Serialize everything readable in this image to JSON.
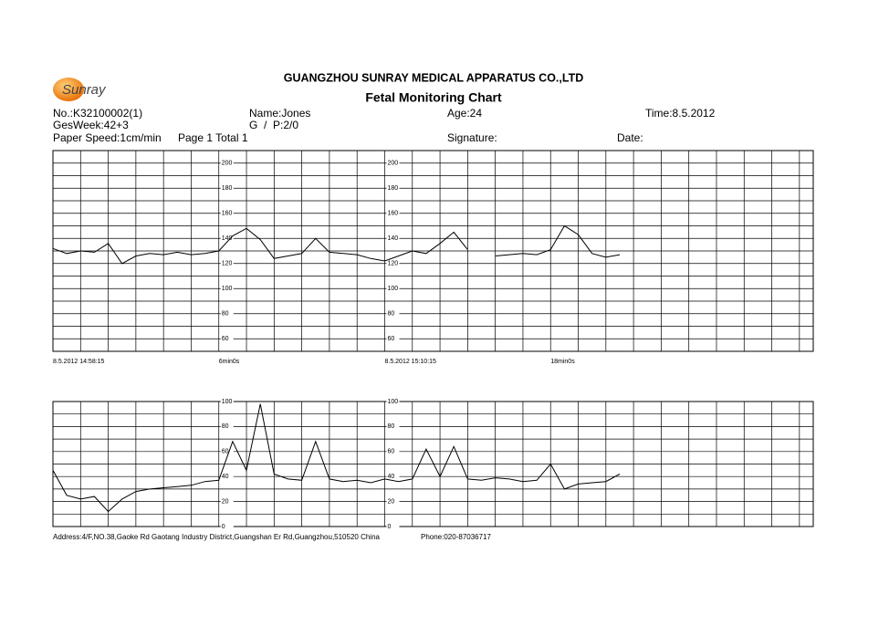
{
  "header": {
    "logo": "Sunray",
    "company": "GUANGZHOU SUNRAY MEDICAL APPARATUS CO.,LTD",
    "title": "Fetal Monitoring Chart"
  },
  "fields": {
    "no": "No.:K32100002(1)",
    "name": "Name:Jones",
    "age": "Age:24",
    "time": "Time:8.5.2012",
    "gesweek": "GesWeek:42+3",
    "gp": "G  /  P:2/0",
    "speed": "Paper Speed:1cm/min",
    "page": "Page 1 Total 1",
    "signature": "Signature:",
    "date": "Date:"
  },
  "footer": {
    "address": "Address:4/F,NO.38,Gaoke Rd Gaotang Industry District,Guangshan Er Rd,Guangzhou,510520 China",
    "phone": "Phone:020-87036717"
  },
  "chart_data": [
    {
      "type": "line",
      "color": "#000000",
      "grid": true,
      "x": [
        0,
        0.5,
        1,
        1.5,
        2,
        2.5,
        3,
        3.5,
        4,
        4.5,
        5,
        5.5,
        6,
        6.5,
        7,
        7.5,
        8,
        8.5,
        9,
        9.5,
        10,
        10.5,
        11,
        11.5,
        12,
        12.5,
        13,
        13.5,
        14,
        14.5,
        15,
        15.5,
        16,
        16.5,
        17,
        17.5,
        18,
        18.5,
        19,
        19.5,
        20,
        20.5
      ],
      "values": [
        132,
        128,
        130,
        129,
        136,
        120,
        126,
        128,
        127,
        129,
        127,
        128,
        130,
        142,
        148,
        139,
        124,
        126,
        128,
        140,
        129,
        128,
        127,
        124,
        122,
        126,
        130,
        128,
        136,
        145,
        131,
        null,
        126,
        127,
        128,
        127,
        131,
        150,
        143,
        128,
        125,
        127
      ],
      "xlim": [
        0,
        27.5
      ],
      "ylim": [
        50,
        210
      ],
      "xticks": [
        {
          "value": 0,
          "label": "8.5.2012 14:58:15"
        },
        {
          "value": 6,
          "label": "6min0s"
        },
        {
          "value": 12,
          "label": "8.5.2012 15:10:15"
        },
        {
          "value": 18,
          "label": "18min0s"
        }
      ],
      "yticks": [
        60,
        80,
        100,
        120,
        140,
        160,
        180,
        200
      ],
      "minor_xticks": [
        0,
        1,
        2,
        3,
        4,
        5,
        6,
        7,
        8,
        9,
        10,
        11,
        12,
        13,
        14,
        15,
        16,
        17,
        18,
        19,
        20,
        21,
        22,
        23,
        24,
        25,
        26,
        27
      ],
      "minor_yticks": [
        60,
        70,
        80,
        90,
        100,
        110,
        120,
        130,
        140,
        150,
        160,
        170,
        180,
        190,
        200
      ]
    },
    {
      "type": "line",
      "color": "#000000",
      "grid": true,
      "x": [
        0,
        0.5,
        1,
        1.5,
        2,
        2.5,
        3,
        3.5,
        4,
        4.5,
        5,
        5.5,
        6,
        6.5,
        7,
        7.5,
        8,
        8.5,
        9,
        9.5,
        10,
        10.5,
        11,
        11.5,
        12,
        12.5,
        13,
        13.5,
        14,
        14.5,
        15,
        15.5,
        16,
        16.5,
        17,
        17.5,
        18,
        18.5,
        19,
        19.5,
        20,
        20.5
      ],
      "values": [
        45,
        25,
        22,
        24,
        12,
        22,
        28,
        30,
        31,
        32,
        33,
        36,
        37,
        68,
        45,
        98,
        42,
        38,
        37,
        68,
        38,
        36,
        37,
        35,
        38,
        36,
        38,
        62,
        40,
        64,
        38,
        37,
        39,
        38,
        36,
        37,
        50,
        30,
        34,
        35,
        36,
        42
      ],
      "xlim": [
        0,
        27.5
      ],
      "ylim": [
        0,
        100
      ],
      "yticks": [
        0,
        20,
        40,
        60,
        80,
        100
      ],
      "minor_xticks": [
        0,
        1,
        2,
        3,
        4,
        5,
        6,
        7,
        8,
        9,
        10,
        11,
        12,
        13,
        14,
        15,
        16,
        17,
        18,
        19,
        20,
        21,
        22,
        23,
        24,
        25,
        26,
        27
      ],
      "minor_yticks": [
        10,
        20,
        30,
        40,
        50,
        60,
        70,
        80,
        90
      ]
    }
  ]
}
